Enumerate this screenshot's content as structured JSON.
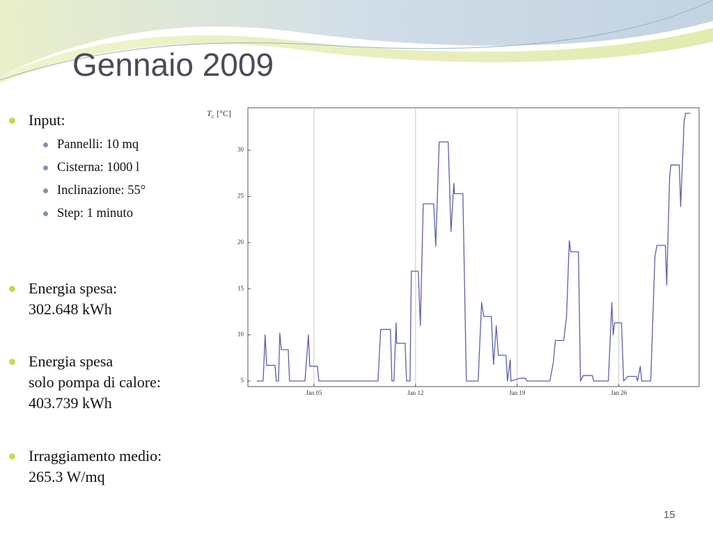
{
  "slide": {
    "title": "Gennaio 2009",
    "bullets": [
      {
        "lines": [
          "Input:"
        ],
        "sub": [
          "Pannelli: 10 mq",
          "Cisterna: 1000 l",
          "Inclinazione: 55°",
          "Step: 1 minuto"
        ]
      },
      {
        "lines": [
          "Energia spesa:",
          "302.648 kWh"
        ]
      },
      {
        "lines": [
          "Energia spesa",
          "solo pompa di calore:",
          "403.739 kWh"
        ]
      },
      {
        "lines": [
          "Irraggiamento medio:",
          "265.3 W/mq"
        ]
      }
    ],
    "page_number": "15"
  },
  "chart_data": {
    "type": "line",
    "y_label": {
      "symbol": "T",
      "subscript": "c",
      "unit": "[°C]"
    },
    "color": "#5a5fa8",
    "x": [
      1.07,
      1.5,
      1.64,
      1.74,
      2.32,
      2.41,
      2.56,
      2.65,
      2.75,
      3.23,
      3.32,
      4.38,
      4.62,
      4.71,
      5.24,
      5.34,
      9.41,
      9.6,
      9.65,
      10.27,
      10.37,
      10.51,
      10.66,
      10.7,
      11.28,
      11.38,
      11.62,
      11.71,
      12.19,
      12.33,
      12.53,
      13.25,
      13.39,
      13.63,
      14.25,
      14.44,
      14.64,
      14.68,
      15.26,
      15.5,
      16.31,
      16.55,
      16.7,
      17.22,
      17.37,
      17.56,
      17.7,
      18.23,
      18.33,
      18.52,
      18.57,
      19.19,
      19.57,
      19.67,
      21.25,
      21.49,
      21.63,
      22.21,
      22.4,
      22.59,
      22.69,
      23.22,
      23.36,
      23.55,
      24.18,
      24.27,
      25.28,
      25.52,
      25.61,
      25.71,
      26.19,
      26.33,
      26.62,
      27.2,
      27.29,
      27.48,
      27.58,
      28.2,
      28.49,
      28.63,
      29.21,
      29.3,
      29.5,
      29.59,
      30.17,
      30.26,
      30.5,
      30.6,
      30.93
    ],
    "values": [
      5,
      5,
      10,
      6.7,
      6.7,
      5,
      5,
      10.2,
      8.4,
      8.4,
      5,
      5,
      10,
      6.6,
      6.6,
      5,
      5,
      10.6,
      10.6,
      10.6,
      5,
      5,
      11.3,
      9.1,
      9.1,
      5,
      5,
      16.9,
      16.9,
      11,
      24.2,
      24.2,
      19.6,
      30.9,
      30.9,
      21.2,
      26.4,
      25.3,
      25.3,
      5,
      5,
      13.5,
      12,
      12,
      6.8,
      11,
      7.8,
      7.8,
      5,
      7.3,
      5,
      5.3,
      5.3,
      5,
      5,
      7,
      9.4,
      9.4,
      12,
      20.2,
      19,
      19,
      5,
      5.6,
      5.6,
      5,
      5,
      13.5,
      10,
      11.3,
      11.3,
      5,
      5.5,
      5.5,
      5,
      6.6,
      5,
      5,
      18.5,
      19.7,
      19.7,
      15.4,
      27.1,
      28.4,
      28.4,
      23.9,
      33.1,
      34,
      34
    ],
    "xlim": [
      0.45,
      31.53
    ],
    "ylim": [
      4.4,
      34.6
    ],
    "xticks": [
      {
        "value": 5,
        "label": "Jan 05"
      },
      {
        "value": 12,
        "label": "Jan 12"
      },
      {
        "value": 19,
        "label": "Jan 19"
      },
      {
        "value": 26,
        "label": "Jan 26"
      }
    ],
    "yticks": [
      5,
      10,
      15,
      20,
      25,
      30
    ],
    "grid_x": true
  }
}
